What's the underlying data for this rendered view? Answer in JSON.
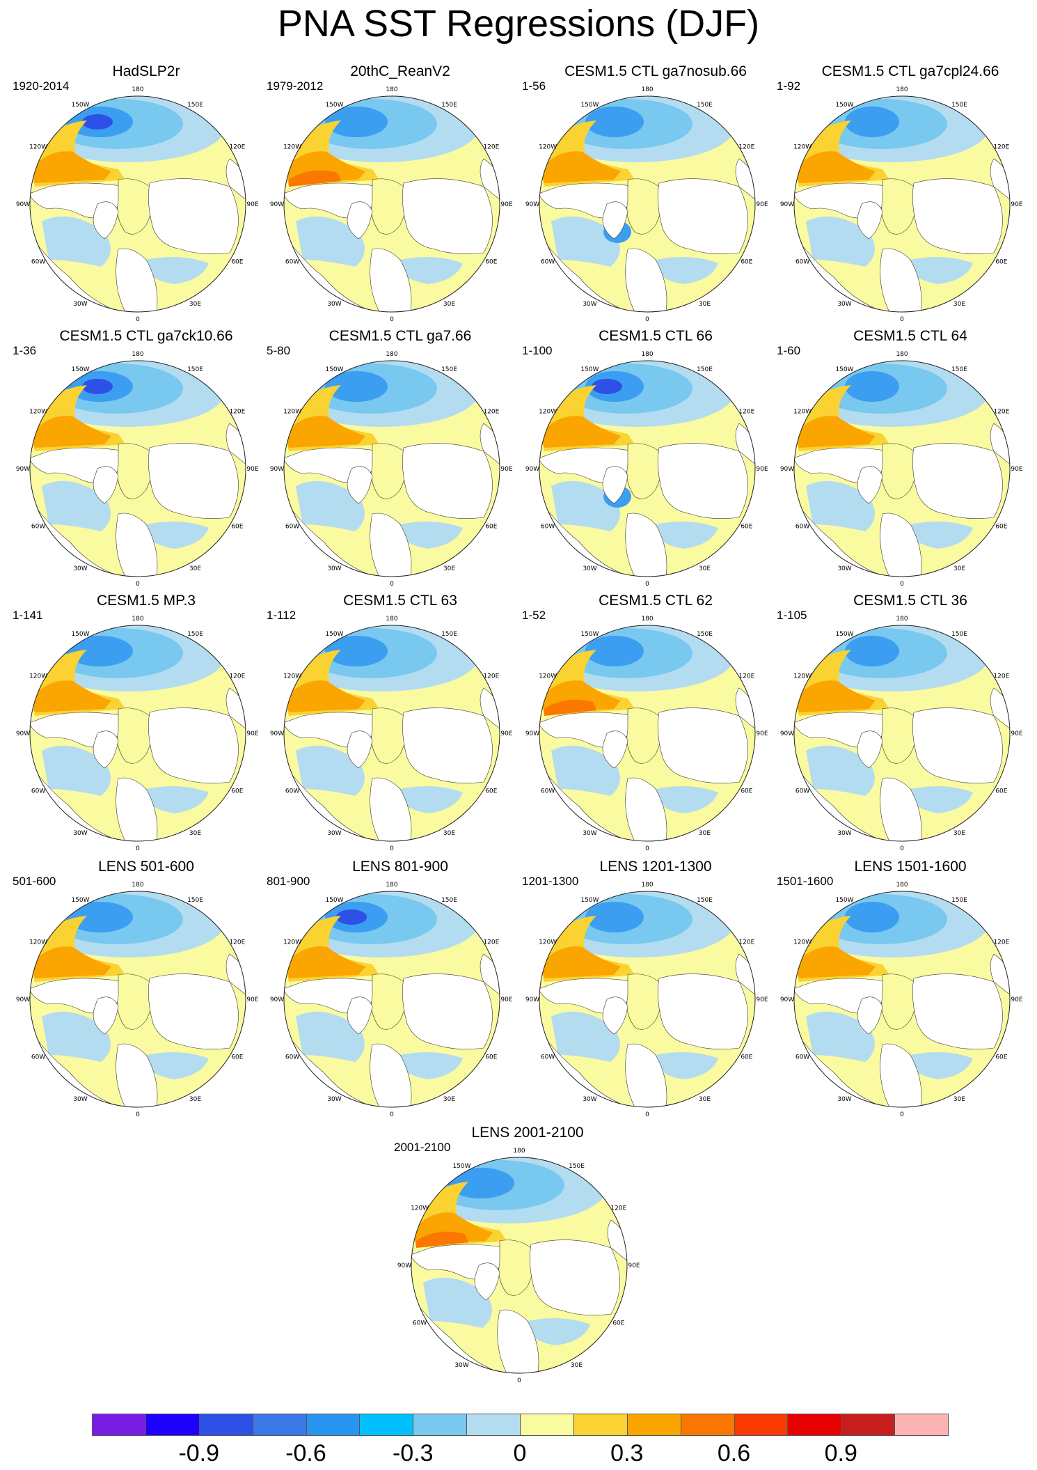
{
  "title": "PNA SST Regressions (DJF)",
  "panels": [
    {
      "title": "HadSLP2r",
      "period": "1920-2014"
    },
    {
      "title": "20thC_ReanV2",
      "period": "1979-2012"
    },
    {
      "title": "CESM1.5 CTL ga7nosub.66",
      "period": "1-56"
    },
    {
      "title": "CESM1.5 CTL ga7cpl24.66",
      "period": "1-92"
    },
    {
      "title": "CESM1.5 CTL ga7ck10.66",
      "period": "1-36"
    },
    {
      "title": "CESM1.5 CTL ga7.66",
      "period": "5-80"
    },
    {
      "title": "CESM1.5 CTL 66",
      "period": "1-100"
    },
    {
      "title": "CESM1.5 CTL 64",
      "period": "1-60"
    },
    {
      "title": "CESM1.5 MP.3",
      "period": "1-141"
    },
    {
      "title": "CESM1.5 CTL 63",
      "period": "1-112"
    },
    {
      "title": "CESM1.5 CTL 62",
      "period": "1-52"
    },
    {
      "title": "CESM1.5 CTL 36",
      "period": "1-105"
    },
    {
      "title": "LENS 501-600",
      "period": "501-600"
    },
    {
      "title": "LENS 801-900",
      "period": "801-900"
    },
    {
      "title": "LENS 1201-1300",
      "period": "1201-1300"
    },
    {
      "title": "LENS 1501-1600",
      "period": "1501-1600"
    },
    {
      "title": "LENS 2001-2100",
      "period": "2001-2100"
    }
  ],
  "longitude_labels": [
    "180",
    "150E",
    "120E",
    "90E",
    "60E",
    "30E",
    "0",
    "30W",
    "60W",
    "90W",
    "120W",
    "150W"
  ],
  "colorbar": {
    "colors": [
      "#7a1ee6",
      "#1e00ff",
      "#2d50e6",
      "#3c78e6",
      "#2896f0",
      "#00c0ff",
      "#78c8f0",
      "#b4dcf0",
      "#fafaa0",
      "#fad232",
      "#faa500",
      "#fa7800",
      "#fa3c00",
      "#e60000",
      "#c81e1e",
      "#ffb4b4"
    ],
    "tick_labels": [
      "-0.9",
      "-0.6",
      "-0.3",
      "0",
      "0.3",
      "0.6",
      "0.9"
    ]
  },
  "fields": {
    "pos_weak": "#fafaa0",
    "neg_weak": "#b4dcf0",
    "neg_mid": "#78c8f0",
    "neg_strong": "#3c9ef0",
    "neg_core": "#2d50e6",
    "pos_mid": "#fad232",
    "pos_strong": "#faa500",
    "pos_core": "#fa7800",
    "land": "#ffffff"
  }
}
